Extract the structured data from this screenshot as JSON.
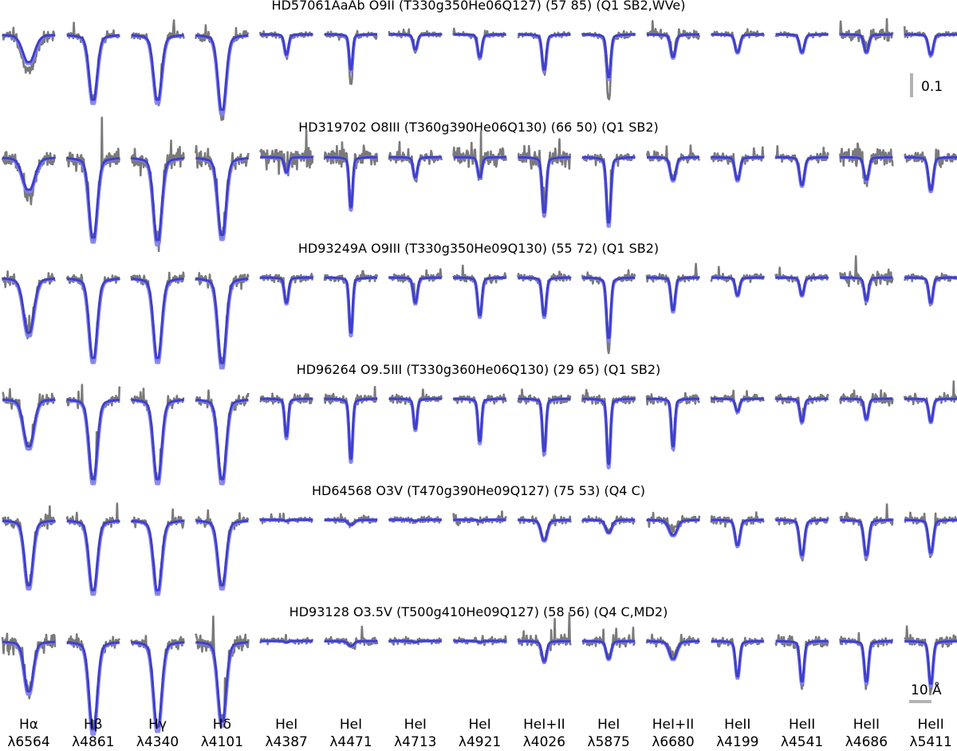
{
  "chart_data": {
    "type": "line",
    "description_note": "",
    "lines": [
      {
        "element": "Hα",
        "wavelength": "λ6564"
      },
      {
        "element": "Hβ",
        "wavelength": "λ4861"
      },
      {
        "element": "Hγ",
        "wavelength": "λ4340"
      },
      {
        "element": "Hδ",
        "wavelength": "λ4101"
      },
      {
        "element": "HeI",
        "wavelength": "λ4387"
      },
      {
        "element": "HeI",
        "wavelength": "λ4471"
      },
      {
        "element": "HeI",
        "wavelength": "λ4713"
      },
      {
        "element": "HeI",
        "wavelength": "λ4921"
      },
      {
        "element": "HeI+II",
        "wavelength": "λ4026"
      },
      {
        "element": "HeI",
        "wavelength": "λ5875"
      },
      {
        "element": "HeI+II",
        "wavelength": "λ6680"
      },
      {
        "element": "HeII",
        "wavelength": "λ4199"
      },
      {
        "element": "HeII",
        "wavelength": "λ4541"
      },
      {
        "element": "HeII",
        "wavelength": "λ4686"
      },
      {
        "element": "HeII",
        "wavelength": "λ5411"
      }
    ],
    "stars": [
      {
        "title": "HD57061AaAb O9II (T330g350He06Q127) (57 85) (Q1 SB2,WVe)",
        "depths": [
          0.11,
          0.26,
          0.26,
          0.3,
          0.08,
          0.14,
          0.06,
          0.09,
          0.14,
          0.17,
          0.09,
          0.07,
          0.07,
          0.07,
          0.08
        ],
        "widths": [
          1.8,
          1.2,
          1.2,
          1.2,
          0.6,
          0.5,
          0.6,
          0.6,
          0.6,
          0.6,
          0.7,
          0.7,
          0.7,
          0.7,
          0.7
        ],
        "obs_ratio": [
          1.3,
          1.0,
          1.0,
          1.1,
          1.1,
          1.4,
          1.2,
          1.1,
          1.1,
          1.5,
          0.8,
          1.1,
          1.1,
          0.8,
          1.1
        ],
        "noise": [
          0.012,
          0.008,
          0.008,
          0.01,
          0.006,
          0.006,
          0.005,
          0.005,
          0.006,
          0.006,
          0.008,
          0.006,
          0.005,
          0.012,
          0.005
        ]
      },
      {
        "title": "HD319702 O8III (T360g390He06Q130) (66 50) (Q1 SB2)",
        "depths": [
          0.13,
          0.32,
          0.33,
          0.31,
          0.06,
          0.2,
          0.08,
          0.08,
          0.22,
          0.26,
          0.09,
          0.09,
          0.11,
          0.09,
          0.13
        ],
        "widths": [
          1.8,
          1.2,
          1.2,
          1.2,
          0.6,
          0.5,
          0.6,
          0.6,
          0.6,
          0.6,
          0.8,
          0.7,
          0.7,
          0.7,
          0.7
        ],
        "obs_ratio": [
          1.2,
          1.0,
          1.0,
          1.0,
          1.0,
          1.0,
          1.0,
          1.0,
          1.0,
          1.0,
          1.0,
          1.0,
          1.0,
          1.0,
          1.0
        ],
        "noise": [
          0.015,
          0.02,
          0.02,
          0.02,
          0.02,
          0.02,
          0.01,
          0.02,
          0.02,
          0.012,
          0.01,
          0.01,
          0.01,
          0.02,
          0.01
        ]
      },
      {
        "title": "HD93249A O9III (T330g350He09Q130) (55 72) (Q1 SB2)",
        "depths": [
          0.22,
          0.32,
          0.32,
          0.34,
          0.1,
          0.22,
          0.1,
          0.15,
          0.15,
          0.24,
          0.13,
          0.07,
          0.07,
          0.09,
          0.1
        ],
        "widths": [
          1.5,
          1.2,
          1.2,
          1.2,
          0.6,
          0.5,
          0.6,
          0.6,
          0.6,
          0.6,
          0.6,
          0.6,
          0.6,
          0.6,
          0.6
        ],
        "obs_ratio": [
          1.0,
          1.0,
          1.0,
          1.0,
          0.9,
          1.0,
          1.0,
          1.0,
          1.0,
          1.2,
          1.0,
          1.0,
          1.0,
          1.0,
          1.0
        ],
        "noise": [
          0.012,
          0.01,
          0.01,
          0.012,
          0.008,
          0.008,
          0.008,
          0.008,
          0.008,
          0.008,
          0.008,
          0.008,
          0.008,
          0.012,
          0.008
        ]
      },
      {
        "title": "HD96264 O9.5III (T330g360He06Q130) (29 65) (Q1 SB2)",
        "depths": [
          0.19,
          0.32,
          0.32,
          0.32,
          0.15,
          0.24,
          0.12,
          0.17,
          0.21,
          0.26,
          0.19,
          0.05,
          0.09,
          0.08,
          0.09
        ],
        "widths": [
          1.5,
          1.2,
          1.2,
          1.2,
          0.5,
          0.5,
          0.5,
          0.5,
          0.5,
          0.5,
          0.5,
          0.6,
          0.6,
          0.6,
          0.6
        ],
        "obs_ratio": [
          1.0,
          1.0,
          1.0,
          1.0,
          1.0,
          1.0,
          1.0,
          1.0,
          1.0,
          1.0,
          1.0,
          1.0,
          1.0,
          1.0,
          1.0
        ],
        "noise": [
          0.012,
          0.01,
          0.01,
          0.012,
          0.01,
          0.01,
          0.008,
          0.008,
          0.01,
          0.01,
          0.01,
          0.008,
          0.008,
          0.01,
          0.008
        ]
      },
      {
        "title": "HD64568 O3V (T470g390He09Q127) (75 53) (Q4 C)",
        "depths": [
          0.26,
          0.28,
          0.28,
          0.26,
          0.005,
          0.02,
          0.005,
          0.005,
          0.08,
          0.05,
          0.06,
          0.1,
          0.14,
          0.14,
          0.13
        ],
        "widths": [
          1.2,
          1.2,
          1.2,
          1.2,
          0.6,
          0.9,
          0.6,
          0.6,
          0.9,
          0.9,
          1.2,
          0.7,
          0.7,
          0.7,
          0.7
        ],
        "obs_ratio": [
          1.0,
          1.0,
          1.0,
          1.0,
          1.0,
          1.0,
          1.0,
          1.0,
          1.0,
          1.0,
          0.6,
          1.0,
          1.1,
          1.1,
          1.1
        ],
        "noise": [
          0.012,
          0.01,
          0.01,
          0.01,
          0.006,
          0.006,
          0.006,
          0.006,
          0.008,
          0.008,
          0.008,
          0.008,
          0.008,
          0.008,
          0.008
        ]
      },
      {
        "title": "HD93128 O3.5V (T500g410He09Q127) (58 56) (Q4 C,MD2)",
        "depths": [
          0.2,
          0.35,
          0.34,
          0.32,
          0.005,
          0.02,
          0.005,
          0.005,
          0.08,
          0.07,
          0.07,
          0.14,
          0.16,
          0.16,
          0.17
        ],
        "widths": [
          1.3,
          1.2,
          1.2,
          1.2,
          0.6,
          0.9,
          0.6,
          0.6,
          0.7,
          0.7,
          1.1,
          0.6,
          0.6,
          0.6,
          0.6
        ],
        "obs_ratio": [
          1.0,
          1.0,
          1.0,
          1.0,
          1.0,
          1.0,
          1.0,
          1.0,
          1.0,
          1.0,
          0.7,
          1.0,
          1.1,
          1.1,
          1.1
        ],
        "noise": [
          0.02,
          0.012,
          0.01,
          0.02,
          0.006,
          0.008,
          0.006,
          0.006,
          0.012,
          0.01,
          0.008,
          0.008,
          0.012,
          0.008,
          0.012
        ]
      }
    ],
    "flux_scale_label": "0.1",
    "wavelength_scale_label": "10 Å",
    "colors": {
      "observed": "#7a7a7a",
      "model_fit": "#3f3fcc",
      "model_alt": "#8080ee",
      "scale_bar": "#b3b3b3"
    }
  }
}
